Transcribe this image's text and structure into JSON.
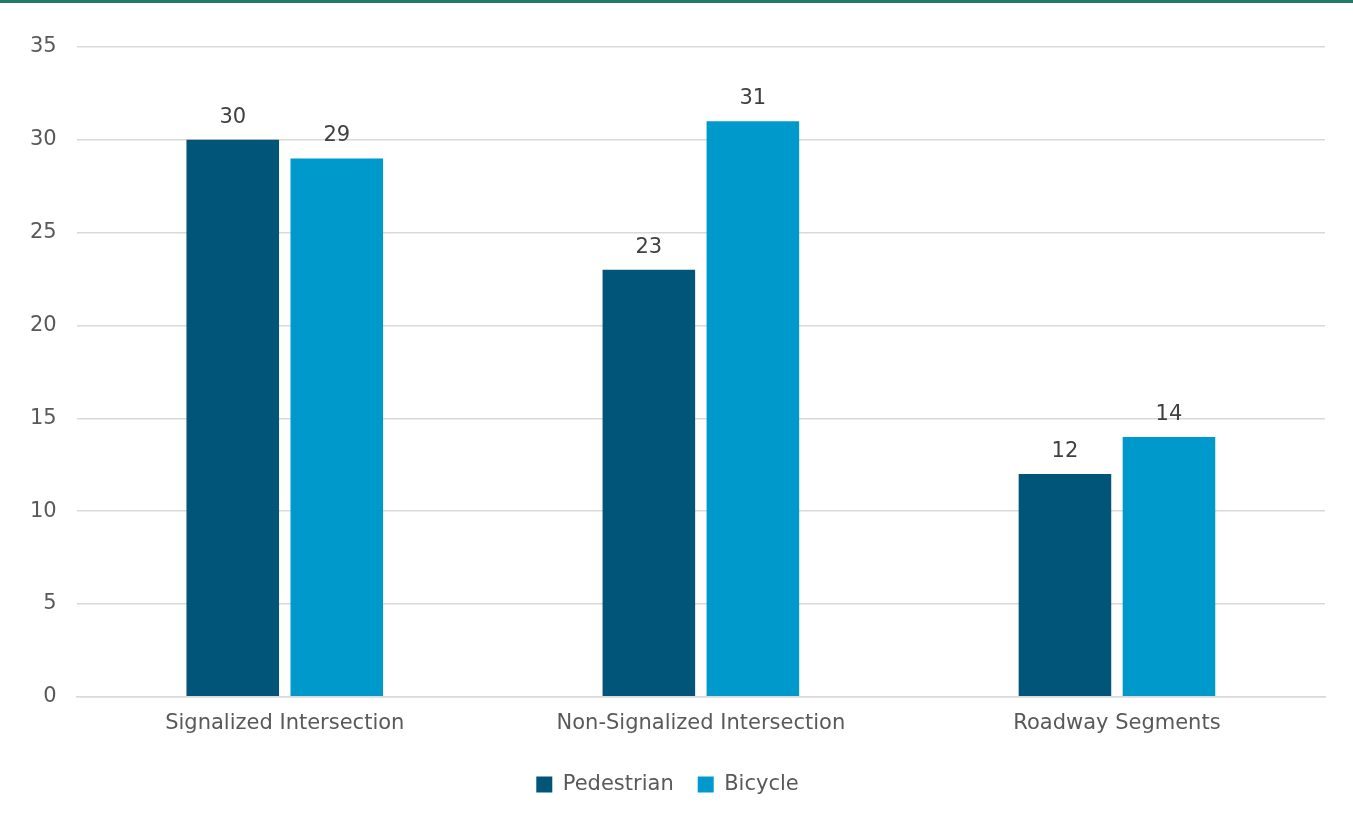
{
  "chart_data": {
    "type": "bar",
    "categories": [
      "Signalized Intersection",
      "Non-Signalized Intersection",
      "Roadway Segments"
    ],
    "series": [
      {
        "name": "Pedestrian",
        "color": "#005578",
        "values": [
          30,
          23,
          12
        ]
      },
      {
        "name": "Bicycle",
        "color": "#0099cc",
        "values": [
          29,
          31,
          14
        ]
      }
    ],
    "ylim": [
      0,
      35
    ],
    "yticks": [
      0,
      5,
      10,
      15,
      20,
      25,
      30,
      35
    ],
    "grid": "y",
    "legend": "bottom",
    "data_labels": true
  }
}
